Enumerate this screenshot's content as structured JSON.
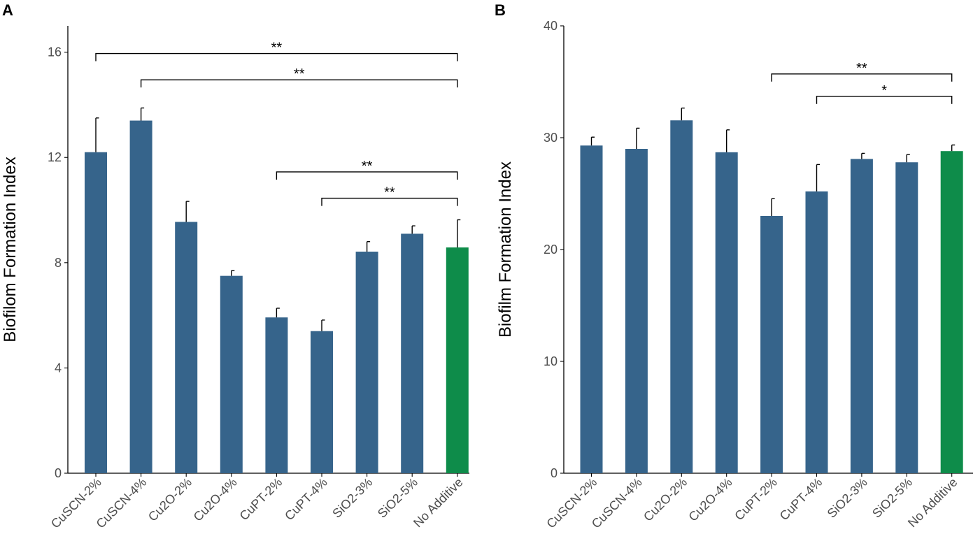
{
  "colors": {
    "default_bar": "#36648b",
    "control_bar": "#0e8c4a",
    "axis": "#000000",
    "tick_text": "#4d4d4d"
  },
  "chart_data": [
    {
      "panel": "A",
      "type": "bar",
      "ylabel": "Biofilom Formation Index",
      "xlabel": "",
      "ylim": [
        0,
        17
      ],
      "yticks": [
        0,
        4,
        8,
        12,
        16
      ],
      "categories": [
        "CuSCN-2%",
        "CuSCN-4%",
        "Cu2O-2%",
        "Cu2O-4%",
        "CuPT-2%",
        "CuPT-4%",
        "SiO2-3%",
        "SiO2-5%",
        "No Additive"
      ],
      "values": [
        12.2,
        13.4,
        9.55,
        7.5,
        5.92,
        5.4,
        8.42,
        9.1,
        8.58
      ],
      "errors": [
        1.3,
        0.48,
        0.78,
        0.2,
        0.35,
        0.42,
        0.38,
        0.3,
        1.05
      ],
      "highlight_index": 8,
      "significance": [
        {
          "from": 0,
          "to": 8,
          "y": 15.95,
          "label": "**"
        },
        {
          "from": 1,
          "to": 8,
          "y": 14.95,
          "label": "**"
        },
        {
          "from": 4,
          "to": 8,
          "y": 11.45,
          "label": "**"
        },
        {
          "from": 5,
          "to": 8,
          "y": 10.45,
          "label": "**"
        }
      ]
    },
    {
      "panel": "B",
      "type": "bar",
      "ylabel": "Biofilm Formation Index",
      "xlabel": "",
      "ylim": [
        0,
        40
      ],
      "yticks": [
        0,
        10,
        20,
        30,
        40
      ],
      "categories": [
        "CuSCN-2%",
        "CuSCN-4%",
        "Cu2O-2%",
        "Cu2O-4%",
        "CuPT-2%",
        "CuPT-4%",
        "SiO2-3%",
        "SiO2-5%",
        "No Additive"
      ],
      "values": [
        29.3,
        29.0,
        31.55,
        28.7,
        23.0,
        25.2,
        28.1,
        27.8,
        28.8
      ],
      "errors": [
        0.75,
        1.85,
        1.1,
        2.0,
        1.55,
        2.4,
        0.5,
        0.7,
        0.55
      ],
      "highlight_index": 8,
      "significance": [
        {
          "from": 4,
          "to": 8,
          "y": 35.7,
          "label": "**"
        },
        {
          "from": 5,
          "to": 8,
          "y": 33.7,
          "label": "*"
        }
      ]
    }
  ]
}
